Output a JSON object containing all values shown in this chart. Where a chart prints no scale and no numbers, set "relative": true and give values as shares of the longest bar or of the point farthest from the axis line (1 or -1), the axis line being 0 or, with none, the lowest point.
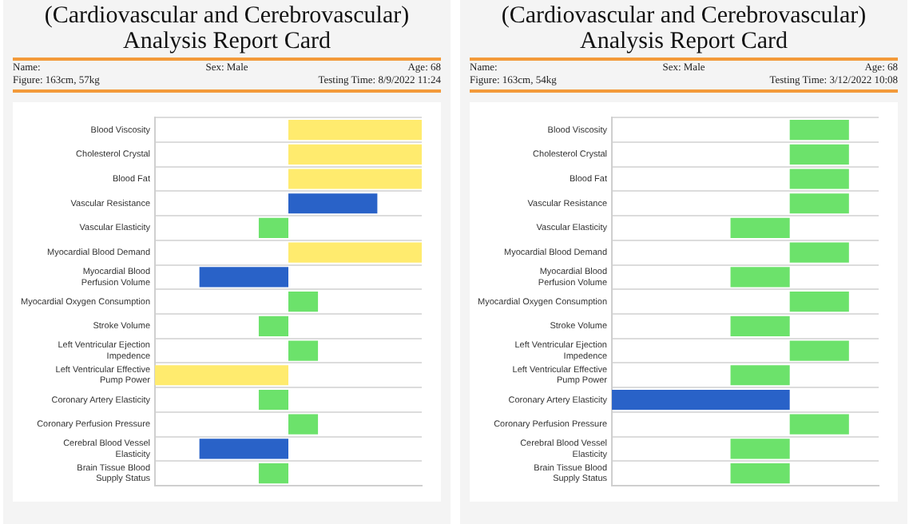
{
  "chart_data": [
    {
      "type": "bar",
      "orientation": "horizontal",
      "relative": true,
      "grid": "y",
      "legend": false,
      "title": "(Cardiovascular and Cerebrovascular) Analysis Report Card",
      "annotations": [
        "Name:",
        "Sex: Male",
        "Age: 68",
        "Figure: 163cm, 57kg",
        "Testing Time: 8/9/2022 11:24"
      ],
      "categories": [
        "Blood Viscosity",
        "Cholesterol Crystal",
        "Blood Fat",
        "Vascular Resistance",
        "Vascular Elasticity",
        "Myocardial Blood Demand",
        "Myocardial Blood Perfusion Volume",
        "Myocardial Oxygen Consumption",
        "Stroke Volume",
        "Left Ventricular Ejection Impedence",
        "Left Ventricular Effective Pump Power",
        "Coronary Artery Elasticity",
        "Coronary Perfusion Pressure",
        "Cerebral Blood Vessel Elasticity",
        "Brain Tissue Blood Supply Status"
      ],
      "values": [
        1,
        1,
        1,
        0.667,
        -0.222,
        1,
        -0.667,
        0.222,
        -0.222,
        0.222,
        -1,
        -0.222,
        0.222,
        -0.667,
        -0.222
      ],
      "colors": [
        "#ffeb6e",
        "#ffeb6e",
        "#ffeb6e",
        "#2962c8",
        "#6ce26b",
        "#ffeb6e",
        "#2962c8",
        "#6ce26b",
        "#6ce26b",
        "#6ce26b",
        "#ffeb6e",
        "#6ce26b",
        "#6ce26b",
        "#2962c8",
        "#6ce26b"
      ]
    },
    {
      "type": "bar",
      "orientation": "horizontal",
      "relative": true,
      "grid": "y",
      "legend": false,
      "title": "(Cardiovascular and Cerebrovascular) Analysis Report Card",
      "annotations": [
        "Name:",
        "Sex: Male",
        "Age: 68",
        "Figure: 163cm, 54kg",
        "Testing Time: 3/12/2022 10:08"
      ],
      "categories": [
        "Blood Viscosity",
        "Cholesterol Crystal",
        "Blood Fat",
        "Vascular Resistance",
        "Vascular Elasticity",
        "Myocardial Blood Demand",
        "Myocardial Blood Perfusion Volume",
        "Myocardial Oxygen Consumption",
        "Stroke Volume",
        "Left Ventricular Ejection Impedence",
        "Left Ventricular Effective Pump Power",
        "Coronary Artery Elasticity",
        "Coronary Perfusion Pressure",
        "Cerebral Blood Vessel Elasticity",
        "Brain Tissue Blood Supply Status"
      ],
      "values": [
        0.333,
        0.333,
        0.333,
        0.333,
        -0.333,
        0.333,
        -0.333,
        0.333,
        -0.333,
        0.333,
        -0.333,
        -1,
        0.333,
        -0.333,
        -0.333
      ],
      "colors": [
        "#6ce26b",
        "#6ce26b",
        "#6ce26b",
        "#6ce26b",
        "#6ce26b",
        "#6ce26b",
        "#6ce26b",
        "#6ce26b",
        "#6ce26b",
        "#6ce26b",
        "#6ce26b",
        "#2962c8",
        "#6ce26b",
        "#6ce26b",
        "#6ce26b"
      ]
    }
  ]
}
